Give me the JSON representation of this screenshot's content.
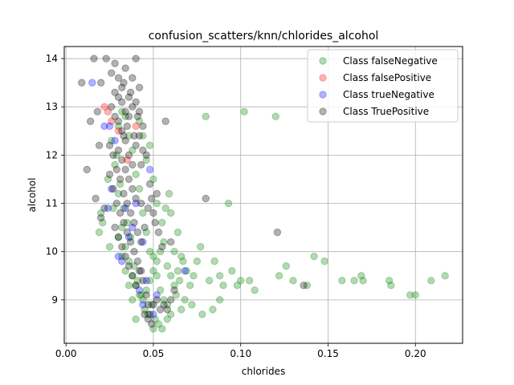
{
  "chart_data": {
    "type": "scatter",
    "title": "confusion_scatters/knn/chlorides_alcohol",
    "xlabel": "chlorides",
    "ylabel": "alcohol",
    "xlim": [
      -0.001,
      0.227
    ],
    "ylim": [
      8.1,
      14.25
    ],
    "xticks": [
      0.0,
      0.05,
      0.1,
      0.15,
      0.2
    ],
    "xtick_labels": [
      "0.00",
      "0.05",
      "0.10",
      "0.15",
      "0.20"
    ],
    "yticks": [
      9,
      10,
      11,
      12,
      13,
      14
    ],
    "ytick_labels": [
      "9",
      "10",
      "11",
      "12",
      "13",
      "14"
    ],
    "grid": true,
    "legend_position": "top-right",
    "series": [
      {
        "name": "Class falseNegative",
        "color": "#008000",
        "points": [
          [
            0.026,
            12.3
          ],
          [
            0.028,
            11.8
          ],
          [
            0.03,
            11.2
          ],
          [
            0.032,
            10.5
          ],
          [
            0.034,
            10.1
          ],
          [
            0.036,
            9.8
          ],
          [
            0.038,
            9.5
          ],
          [
            0.04,
            9.3
          ],
          [
            0.042,
            9.1
          ],
          [
            0.044,
            9.0
          ],
          [
            0.046,
            9.2
          ],
          [
            0.048,
            9.4
          ],
          [
            0.05,
            9.6
          ],
          [
            0.052,
            9.8
          ],
          [
            0.054,
            10.0
          ],
          [
            0.056,
            10.2
          ],
          [
            0.058,
            9.7
          ],
          [
            0.06,
            9.5
          ],
          [
            0.062,
            9.3
          ],
          [
            0.064,
            9.6
          ],
          [
            0.045,
            8.8
          ],
          [
            0.047,
            8.7
          ],
          [
            0.049,
            8.9
          ],
          [
            0.051,
            8.6
          ],
          [
            0.053,
            8.5
          ],
          [
            0.055,
            8.4
          ],
          [
            0.05,
            8.4
          ],
          [
            0.043,
            9.1
          ],
          [
            0.041,
            9.4
          ],
          [
            0.039,
            9.7
          ],
          [
            0.037,
            10.3
          ],
          [
            0.035,
            10.6
          ],
          [
            0.033,
            10.9
          ],
          [
            0.031,
            11.4
          ],
          [
            0.029,
            12.0
          ],
          [
            0.03,
            12.6
          ],
          [
            0.032,
            12.9
          ],
          [
            0.034,
            12.8
          ],
          [
            0.036,
            12.4
          ],
          [
            0.038,
            12.1
          ],
          [
            0.04,
            11.6
          ],
          [
            0.042,
            11.3
          ],
          [
            0.044,
            10.8
          ],
          [
            0.046,
            10.4
          ],
          [
            0.048,
            10.0
          ],
          [
            0.05,
            9.9
          ],
          [
            0.052,
            9.5
          ],
          [
            0.054,
            9.2
          ],
          [
            0.056,
            9.0
          ],
          [
            0.058,
            8.9
          ],
          [
            0.06,
            8.7
          ],
          [
            0.063,
            9.1
          ],
          [
            0.065,
            9.4
          ],
          [
            0.067,
            9.8
          ],
          [
            0.069,
            9.6
          ],
          [
            0.071,
            9.3
          ],
          [
            0.073,
            9.5
          ],
          [
            0.075,
            9.8
          ],
          [
            0.077,
            10.1
          ],
          [
            0.08,
            12.8
          ],
          [
            0.082,
            9.4
          ],
          [
            0.085,
            9.8
          ],
          [
            0.088,
            9.5
          ],
          [
            0.09,
            9.3
          ],
          [
            0.093,
            11.0
          ],
          [
            0.095,
            9.6
          ],
          [
            0.098,
            9.3
          ],
          [
            0.1,
            9.4
          ],
          [
            0.102,
            12.9
          ],
          [
            0.105,
            9.4
          ],
          [
            0.108,
            9.2
          ],
          [
            0.12,
            12.8
          ],
          [
            0.122,
            9.5
          ],
          [
            0.126,
            9.7
          ],
          [
            0.13,
            9.4
          ],
          [
            0.138,
            9.3
          ],
          [
            0.142,
            9.9
          ],
          [
            0.148,
            9.8
          ],
          [
            0.158,
            9.4
          ],
          [
            0.165,
            9.4
          ],
          [
            0.169,
            9.5
          ],
          [
            0.17,
            9.4
          ],
          [
            0.185,
            9.4
          ],
          [
            0.186,
            9.3
          ],
          [
            0.197,
            9.1
          ],
          [
            0.2,
            9.1
          ],
          [
            0.209,
            9.4
          ],
          [
            0.217,
            9.5
          ],
          [
            0.019,
            10.4
          ],
          [
            0.02,
            10.8
          ],
          [
            0.021,
            10.6
          ],
          [
            0.024,
            11.5
          ],
          [
            0.025,
            10.1
          ],
          [
            0.027,
            10.9
          ],
          [
            0.058,
            8.6
          ],
          [
            0.066,
            8.8
          ],
          [
            0.068,
            9.0
          ],
          [
            0.072,
            8.9
          ],
          [
            0.078,
            8.7
          ],
          [
            0.084,
            8.8
          ],
          [
            0.088,
            9.0
          ],
          [
            0.04,
            8.6
          ],
          [
            0.038,
            9.0
          ],
          [
            0.036,
            9.3
          ],
          [
            0.034,
            9.6
          ],
          [
            0.032,
            9.9
          ],
          [
            0.03,
            10.3
          ],
          [
            0.055,
            10.6
          ],
          [
            0.057,
            10.9
          ],
          [
            0.059,
            11.2
          ],
          [
            0.05,
            11.5
          ],
          [
            0.052,
            11.0
          ],
          [
            0.046,
            11.9
          ],
          [
            0.044,
            12.4
          ],
          [
            0.042,
            12.7
          ],
          [
            0.048,
            12.2
          ],
          [
            0.062,
            10.0
          ],
          [
            0.064,
            10.4
          ],
          [
            0.06,
            10.8
          ],
          [
            0.066,
            9.9
          ]
        ]
      },
      {
        "name": "Class falsePositive",
        "color": "#ff0000",
        "points": [
          [
            0.022,
            13.0
          ],
          [
            0.024,
            12.9
          ],
          [
            0.026,
            12.7
          ],
          [
            0.03,
            12.5
          ],
          [
            0.035,
            11.9
          ],
          [
            0.04,
            12.6
          ]
        ]
      },
      {
        "name": "Class trueNegative",
        "color": "#0000ff",
        "points": [
          [
            0.015,
            13.5
          ],
          [
            0.022,
            12.6
          ],
          [
            0.025,
            12.6
          ],
          [
            0.028,
            12.3
          ],
          [
            0.03,
            9.9
          ],
          [
            0.032,
            9.8
          ],
          [
            0.034,
            10.9
          ],
          [
            0.036,
            10.3
          ],
          [
            0.038,
            10.5
          ],
          [
            0.04,
            11.0
          ],
          [
            0.042,
            9.2
          ],
          [
            0.044,
            8.9
          ],
          [
            0.046,
            9.4
          ],
          [
            0.048,
            11.7
          ],
          [
            0.05,
            8.7
          ],
          [
            0.024,
            10.9
          ],
          [
            0.068,
            9.6
          ],
          [
            0.026,
            11.3
          ],
          [
            0.044,
            10.2
          ],
          [
            0.052,
            9.1
          ]
        ]
      },
      {
        "name": "Class TruePositive",
        "color": "#000000",
        "points": [
          [
            0.009,
            13.5
          ],
          [
            0.016,
            14.0
          ],
          [
            0.02,
            13.5
          ],
          [
            0.018,
            12.9
          ],
          [
            0.014,
            12.7
          ],
          [
            0.012,
            11.7
          ],
          [
            0.017,
            11.1
          ],
          [
            0.02,
            10.7
          ],
          [
            0.022,
            10.9
          ],
          [
            0.019,
            12.2
          ],
          [
            0.023,
            14.0
          ],
          [
            0.026,
            13.7
          ],
          [
            0.028,
            13.9
          ],
          [
            0.03,
            13.6
          ],
          [
            0.032,
            13.4
          ],
          [
            0.034,
            13.8
          ],
          [
            0.036,
            13.2
          ],
          [
            0.038,
            13.6
          ],
          [
            0.04,
            14.0
          ],
          [
            0.042,
            13.4
          ],
          [
            0.026,
            13.0
          ],
          [
            0.028,
            12.8
          ],
          [
            0.03,
            12.7
          ],
          [
            0.032,
            12.5
          ],
          [
            0.034,
            12.3
          ],
          [
            0.036,
            12.0
          ],
          [
            0.038,
            11.8
          ],
          [
            0.04,
            12.2
          ],
          [
            0.042,
            12.4
          ],
          [
            0.044,
            12.1
          ],
          [
            0.025,
            12.2
          ],
          [
            0.027,
            12.0
          ],
          [
            0.029,
            11.7
          ],
          [
            0.031,
            11.5
          ],
          [
            0.033,
            11.2
          ],
          [
            0.035,
            11.0
          ],
          [
            0.037,
            10.8
          ],
          [
            0.039,
            10.6
          ],
          [
            0.041,
            10.4
          ],
          [
            0.043,
            10.2
          ],
          [
            0.025,
            11.6
          ],
          [
            0.027,
            11.3
          ],
          [
            0.029,
            11.0
          ],
          [
            0.031,
            10.8
          ],
          [
            0.033,
            10.6
          ],
          [
            0.035,
            10.4
          ],
          [
            0.037,
            10.2
          ],
          [
            0.039,
            10.0
          ],
          [
            0.041,
            9.8
          ],
          [
            0.043,
            9.6
          ],
          [
            0.028,
            10.5
          ],
          [
            0.03,
            10.3
          ],
          [
            0.032,
            10.1
          ],
          [
            0.034,
            9.9
          ],
          [
            0.036,
            9.7
          ],
          [
            0.038,
            9.5
          ],
          [
            0.04,
            9.3
          ],
          [
            0.042,
            9.6
          ],
          [
            0.044,
            9.4
          ],
          [
            0.046,
            9.1
          ],
          [
            0.047,
            8.9
          ],
          [
            0.048,
            8.7
          ],
          [
            0.05,
            8.9
          ],
          [
            0.052,
            9.0
          ],
          [
            0.054,
            8.8
          ],
          [
            0.049,
            8.5
          ],
          [
            0.045,
            8.7
          ],
          [
            0.047,
            8.6
          ],
          [
            0.056,
            8.9
          ],
          [
            0.058,
            8.8
          ],
          [
            0.06,
            9.0
          ],
          [
            0.062,
            9.2
          ],
          [
            0.057,
            12.7
          ],
          [
            0.06,
            10.2
          ],
          [
            0.05,
            10.8
          ],
          [
            0.052,
            11.2
          ],
          [
            0.048,
            11.4
          ],
          [
            0.046,
            12.0
          ],
          [
            0.044,
            12.6
          ],
          [
            0.042,
            12.9
          ],
          [
            0.04,
            13.1
          ],
          [
            0.038,
            13.0
          ],
          [
            0.036,
            12.8
          ],
          [
            0.034,
            12.9
          ],
          [
            0.032,
            13.1
          ],
          [
            0.03,
            13.2
          ],
          [
            0.028,
            13.3
          ],
          [
            0.033,
            13.5
          ],
          [
            0.037,
            13.3
          ],
          [
            0.041,
            12.8
          ],
          [
            0.08,
            11.1
          ],
          [
            0.121,
            10.4
          ],
          [
            0.136,
            9.3
          ],
          [
            0.045,
            10.5
          ],
          [
            0.043,
            11.0
          ],
          [
            0.047,
            10.9
          ],
          [
            0.049,
            11.1
          ],
          [
            0.051,
            10.6
          ],
          [
            0.053,
            10.4
          ],
          [
            0.055,
            10.1
          ],
          [
            0.03,
            12.1
          ],
          [
            0.032,
            11.9
          ],
          [
            0.034,
            11.7
          ],
          [
            0.036,
            11.5
          ],
          [
            0.038,
            11.3
          ],
          [
            0.04,
            11.1
          ],
          [
            0.033,
            12.4
          ],
          [
            0.035,
            12.6
          ],
          [
            0.039,
            12.4
          ],
          [
            0.043,
            11.8
          ]
        ]
      }
    ]
  }
}
